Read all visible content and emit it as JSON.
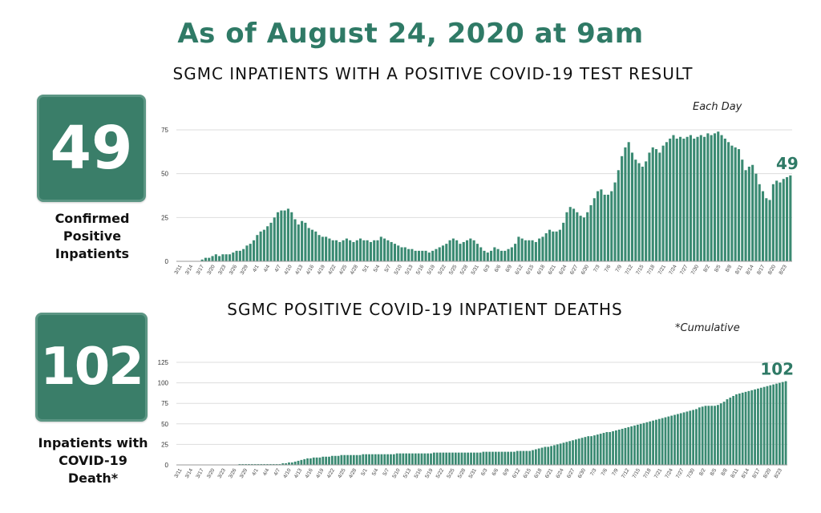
{
  "headline": "As of August 24, 2020 at 9am",
  "panels": [
    {
      "stat_value": "49",
      "stat_label": [
        "Confirmed",
        "Positive",
        "Inpatients"
      ]
    },
    {
      "stat_value": "102",
      "stat_label": [
        "Inpatients with",
        "COVID-19",
        "Death*"
      ]
    }
  ],
  "colors": {
    "accent": "#2f7a66",
    "bar": "#3a8a72",
    "box": "#3a7e69",
    "grid": "#dddddd"
  },
  "chart_data": [
    {
      "type": "bar",
      "title": "SGMC INPATIENTS WITH A POSITIVE COVID-19 TEST RESULT",
      "note": "Each Day",
      "end_label": "49",
      "ylim": [
        0,
        75
      ],
      "yticks": [
        0,
        25,
        50,
        75
      ],
      "grid": true,
      "x_start": "3/11",
      "x_end": "8/24",
      "tick_labels": [
        "3/11",
        "3/14",
        "3/17",
        "3/20",
        "3/23",
        "3/26",
        "3/29",
        "4/1",
        "4/4",
        "4/7",
        "4/10",
        "4/13",
        "4/16",
        "4/19",
        "4/22",
        "4/25",
        "4/28",
        "5/1",
        "5/4",
        "5/7",
        "5/10",
        "5/13",
        "5/16",
        "5/19",
        "5/22",
        "5/25",
        "5/28",
        "5/31",
        "6/3",
        "6/6",
        "6/9",
        "6/12",
        "6/15",
        "6/18",
        "6/21",
        "6/24",
        "6/27",
        "6/30",
        "7/3",
        "7/6",
        "7/9",
        "7/12",
        "7/15",
        "7/18",
        "7/21",
        "7/24",
        "7/27",
        "7/30",
        "8/2",
        "8/5",
        "8/8",
        "8/11",
        "8/14",
        "8/17",
        "8/20",
        "8/23"
      ],
      "values": [
        0,
        0,
        0,
        0,
        0,
        0,
        0,
        1,
        2,
        2,
        3,
        4,
        3,
        4,
        4,
        4,
        5,
        6,
        6,
        7,
        9,
        10,
        12,
        15,
        17,
        18,
        20,
        22,
        25,
        28,
        29,
        29,
        30,
        28,
        24,
        21,
        23,
        22,
        19,
        18,
        17,
        15,
        14,
        14,
        13,
        12,
        12,
        11,
        12,
        13,
        12,
        11,
        12,
        13,
        12,
        12,
        11,
        12,
        12,
        14,
        13,
        12,
        11,
        10,
        9,
        8,
        8,
        7,
        7,
        6,
        6,
        6,
        6,
        5,
        6,
        7,
        8,
        9,
        10,
        12,
        13,
        12,
        10,
        11,
        12,
        13,
        12,
        10,
        8,
        6,
        5,
        6,
        8,
        7,
        6,
        6,
        7,
        8,
        10,
        14,
        13,
        12,
        12,
        12,
        11,
        13,
        14,
        16,
        18,
        17,
        17,
        18,
        22,
        28,
        31,
        30,
        28,
        26,
        25,
        28,
        32,
        36,
        40,
        41,
        38,
        38,
        40,
        45,
        52,
        60,
        65,
        68,
        62,
        58,
        56,
        54,
        57,
        62,
        65,
        64,
        62,
        66,
        68,
        70,
        72,
        70,
        71,
        70,
        71,
        72,
        70,
        71,
        72,
        71,
        73,
        72,
        73,
        74,
        72,
        70,
        68,
        66,
        65,
        64,
        58,
        52,
        54,
        55,
        50,
        44,
        40,
        36,
        35,
        44,
        46,
        45,
        47,
        48,
        49
      ]
    },
    {
      "type": "bar",
      "title": "SGMC POSITIVE COVID-19 INPATIENT DEATHS",
      "note": "*Cumulative",
      "end_label": "102",
      "ylim": [
        0,
        125
      ],
      "yticks": [
        0,
        25,
        50,
        75,
        100,
        125
      ],
      "grid": true,
      "x_start": "3/11",
      "x_end": "8/24",
      "tick_labels": [
        "3/11",
        "3/14",
        "3/17",
        "3/20",
        "3/23",
        "3/26",
        "3/29",
        "4/1",
        "4/4",
        "4/7",
        "4/10",
        "4/13",
        "4/16",
        "4/19",
        "4/22",
        "4/25",
        "4/28",
        "5/1",
        "5/4",
        "5/7",
        "5/10",
        "5/13",
        "5/16",
        "5/19",
        "5/22",
        "5/25",
        "5/28",
        "5/31",
        "6/3",
        "6/6",
        "6/9",
        "6/12",
        "6/15",
        "6/18",
        "6/21",
        "6/24",
        "6/27",
        "6/30",
        "7/3",
        "7/6",
        "7/9",
        "7/12",
        "7/15",
        "7/18",
        "7/21",
        "7/24",
        "7/27",
        "7/30",
        "8/2",
        "8/5",
        "8/8",
        "8/11",
        "8/14",
        "8/17",
        "8/20",
        "8/23"
      ],
      "values": [
        0,
        0,
        0,
        0,
        0,
        0,
        0,
        0,
        0,
        0,
        0,
        0,
        0,
        0,
        0,
        0,
        0,
        0,
        0,
        0,
        1,
        1,
        1,
        1,
        1,
        1,
        1,
        1,
        1,
        1,
        1,
        1,
        1,
        1,
        2,
        2,
        3,
        3,
        4,
        5,
        6,
        7,
        8,
        8,
        9,
        9,
        9,
        10,
        10,
        10,
        11,
        11,
        11,
        12,
        12,
        12,
        12,
        12,
        12,
        12,
        13,
        13,
        13,
        13,
        13,
        13,
        13,
        13,
        13,
        13,
        13,
        14,
        14,
        14,
        14,
        14,
        14,
        14,
        14,
        14,
        14,
        14,
        14,
        15,
        15,
        15,
        15,
        15,
        15,
        15,
        15,
        15,
        15,
        15,
        15,
        15,
        15,
        15,
        15,
        16,
        16,
        16,
        16,
        16,
        16,
        16,
        16,
        16,
        16,
        16,
        17,
        17,
        17,
        17,
        17,
        18,
        19,
        20,
        21,
        22,
        22,
        23,
        24,
        25,
        26,
        27,
        28,
        29,
        30,
        31,
        32,
        33,
        34,
        35,
        35,
        36,
        37,
        38,
        39,
        40,
        40,
        41,
        42,
        43,
        44,
        45,
        46,
        47,
        48,
        49,
        50,
        51,
        52,
        53,
        54,
        55,
        56,
        57,
        58,
        59,
        60,
        61,
        62,
        63,
        64,
        65,
        66,
        67,
        68,
        70,
        71,
        72,
        72,
        72,
        72,
        73,
        75,
        77,
        80,
        82,
        84,
        86,
        87,
        88,
        89,
        90,
        91,
        92,
        93,
        94,
        95,
        96,
        97,
        98,
        99,
        100,
        101,
        102
      ]
    }
  ]
}
